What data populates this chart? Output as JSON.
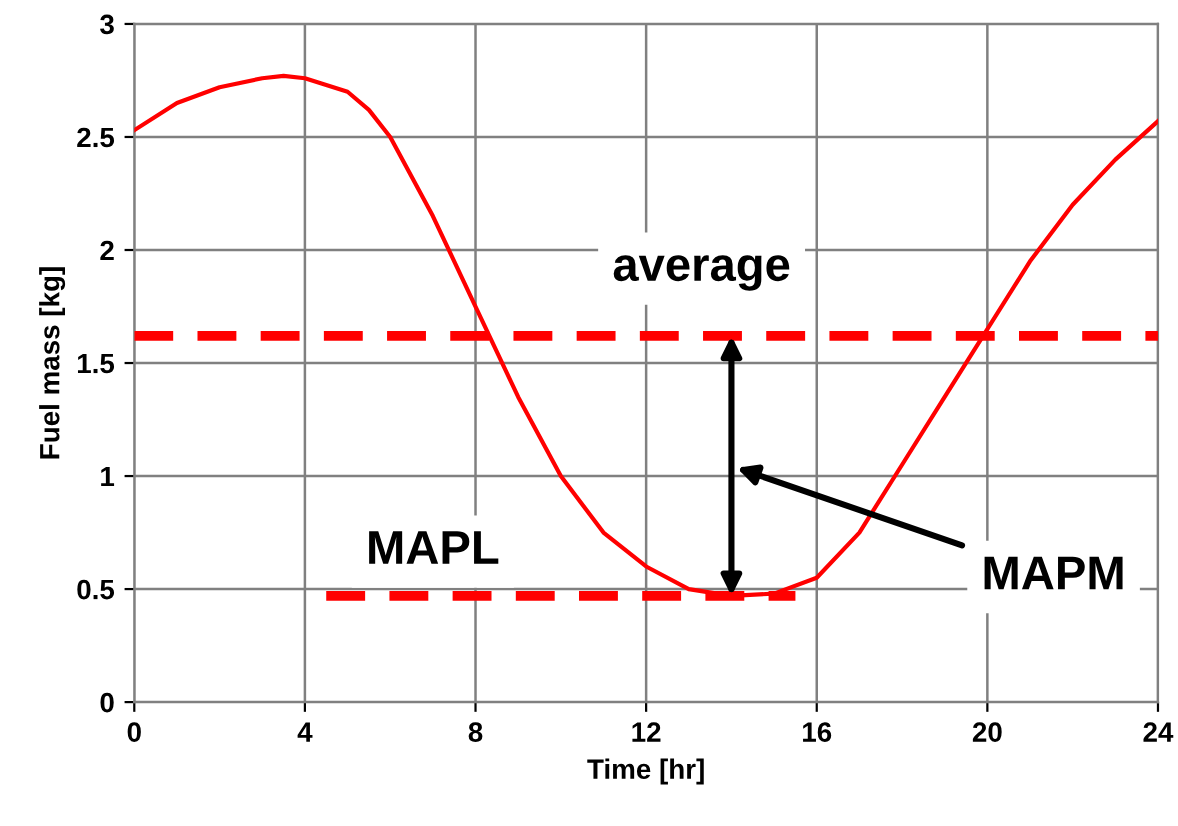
{
  "chart_data": {
    "type": "line",
    "xlabel": "Time [hr]",
    "ylabel": "Fuel mass [kg]",
    "xlim": [
      0,
      24
    ],
    "xticks": [
      0,
      4,
      8,
      12,
      16,
      20,
      24
    ],
    "ylim": [
      0,
      3
    ],
    "yticks": [
      0,
      0.5,
      1,
      1.5,
      2,
      2.5,
      3
    ],
    "grid": true,
    "marker": "none",
    "series": [
      {
        "color": "#ff0000",
        "line_style": "solid",
        "x": [
          0,
          1,
          2,
          3,
          3.5,
          4,
          5,
          5.5,
          6,
          7,
          8,
          9,
          10,
          11,
          12,
          13,
          14,
          15,
          16,
          17,
          18,
          19,
          20,
          21,
          22,
          23,
          24
        ],
        "values": [
          2.53,
          2.65,
          2.72,
          2.76,
          2.77,
          2.76,
          2.7,
          2.62,
          2.5,
          2.15,
          1.75,
          1.35,
          1.0,
          0.75,
          0.6,
          0.5,
          0.47,
          0.48,
          0.55,
          0.75,
          1.05,
          1.35,
          1.65,
          1.95,
          2.2,
          2.4,
          2.57
        ]
      },
      {
        "color": "#ff0000",
        "line_style": "dashed",
        "x": [
          4.5,
          15.5
        ],
        "values": [
          0.47,
          0.47
        ]
      }
    ],
    "ref_lines": [
      {
        "axis": "y",
        "value": 1.62,
        "label": "average",
        "color": "#ff0000",
        "line_style": "dashed"
      }
    ],
    "annotations": [
      {
        "text": "MAPL",
        "x": 7,
        "y": 0.47
      },
      "MAPM"
    ]
  }
}
